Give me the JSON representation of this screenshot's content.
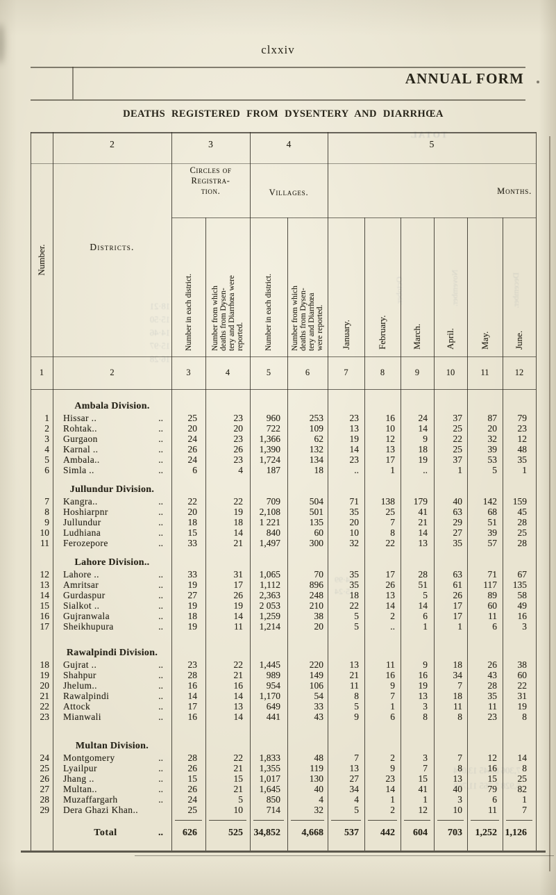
{
  "page": {
    "folio": "clxxiv",
    "form_title": "ANNUAL FORM",
    "table_title": "DEATHS REGISTERED FROM DYSENTERY AND DIARRHŒA",
    "ghosts": [
      "TOTAL",
      "October.",
      "November.",
      "December.",
      "18·21\n15·50\n14·46\n15·97\n16·28",
      "14·99\n15·24",
      "7,306  8,645  13,014\n5,928  5,765  11,760"
    ]
  },
  "table": {
    "group_numbers": [
      "2",
      "3",
      "4",
      "5"
    ],
    "groups": {
      "number_label": "Number.",
      "districts_label": "Districts.",
      "circles_label": "Circles of\nRegistra-\ntion.",
      "villages_label": "Villages.",
      "months_label": "Months."
    },
    "subheaders": [
      "Number in each district.",
      "Number from which\ndeaths from Dysen-\ntery and Diarrhœa were\nreported.",
      "Number in each district.",
      "Number from which\ndeaths from Dysen-\ntery and Diarrhœa\nwere reported."
    ],
    "months": [
      "January.",
      "February.",
      "March.",
      "April.",
      "May.",
      "June."
    ],
    "column_numbers": [
      "1",
      "2",
      "3",
      "4",
      "5",
      "6",
      "7",
      "8",
      "9",
      "10",
      "11",
      "12"
    ],
    "divisions": [
      {
        "name": "Ambala Division.",
        "rows": [
          {
            "no": "1",
            "name": "Hissar ..",
            "leader": "..",
            "c": [
              "25",
              "23",
              "960",
              "253"
            ],
            "m": [
              "23",
              "16",
              "24",
              "37",
              "87",
              "79"
            ]
          },
          {
            "no": "2",
            "name": "Rohtak..",
            "leader": "..",
            "c": [
              "20",
              "20",
              "722",
              "109"
            ],
            "m": [
              "13",
              "10",
              "14",
              "25",
              "20",
              "23"
            ]
          },
          {
            "no": "3",
            "name": "Gurgaon",
            "leader": "..",
            "c": [
              "24",
              "23",
              "1,366",
              "62"
            ],
            "m": [
              "19",
              "12",
              "9",
              "22",
              "32",
              "12"
            ]
          },
          {
            "no": "4",
            "name": "Karnal ..",
            "leader": "..",
            "c": [
              "26",
              "26",
              "1,390",
              "132"
            ],
            "m": [
              "14",
              "13",
              "18",
              "25",
              "39",
              "48"
            ]
          },
          {
            "no": "5",
            "name": "Ambala..",
            "leader": "..",
            "c": [
              "24",
              "23",
              "1,724",
              "134"
            ],
            "m": [
              "23",
              "17",
              "19",
              "37",
              "53",
              "35"
            ]
          },
          {
            "no": "6",
            "name": "Simla ..",
            "leader": "..",
            "c": [
              "6",
              "4",
              "187",
              "18"
            ],
            "m": [
              "..",
              "1",
              "..",
              "1",
              "5",
              "1"
            ]
          }
        ]
      },
      {
        "name": "Jullundur Division.",
        "rows": [
          {
            "no": "7",
            "name": "Kangra..",
            "leader": "..",
            "c": [
              "22",
              "22",
              "709",
              "504"
            ],
            "m": [
              "71",
              "138",
              "179",
              "40",
              "142",
              "159"
            ]
          },
          {
            "no": "8",
            "name": "Hoshiarpnr",
            "leader": "..",
            "c": [
              "20",
              "19",
              "2,108",
              "501"
            ],
            "m": [
              "35",
              "25",
              "41",
              "63",
              "68",
              "45"
            ]
          },
          {
            "no": "9",
            "name": "Jullundur",
            "leader": "..",
            "c": [
              "18",
              "18",
              "1 221",
              "135"
            ],
            "m": [
              "20",
              "7",
              "21",
              "29",
              "51",
              "28"
            ]
          },
          {
            "no": "10",
            "name": "Ludhiana",
            "leader": "..",
            "c": [
              "15",
              "14",
              "840",
              "60"
            ],
            "m": [
              "10",
              "8",
              "14",
              "27",
              "39",
              "25"
            ]
          },
          {
            "no": "11",
            "name": "Ferozepore",
            "leader": "..",
            "c": [
              "33",
              "21",
              "1,497",
              "300"
            ],
            "m": [
              "32",
              "22",
              "13",
              "35",
              "57",
              "28"
            ]
          }
        ]
      },
      {
        "name": "Lahore Division..",
        "rows": [
          {
            "no": "12",
            "name": "Lahore ..",
            "leader": "..",
            "c": [
              "33",
              "31",
              "1,065",
              "70"
            ],
            "m": [
              "35",
              "17",
              "28",
              "63",
              "71",
              "67"
            ]
          },
          {
            "no": "13",
            "name": "Amritsar",
            "leader": "..",
            "c": [
              "19",
              "17",
              "1,112",
              "896"
            ],
            "m": [
              "35",
              "26",
              "51",
              "61",
              "117",
              "135"
            ]
          },
          {
            "no": "14",
            "name": "Gurdaspur",
            "leader": "..",
            "c": [
              "27",
              "26",
              "2,363",
              "248"
            ],
            "m": [
              "18",
              "13",
              "5",
              "26",
              "89",
              "58"
            ]
          },
          {
            "no": "15",
            "name": "Sialkot ..",
            "leader": "..",
            "c": [
              "19",
              "19",
              "2 053",
              "210"
            ],
            "m": [
              "22",
              "14",
              "14",
              "17",
              "60",
              "49"
            ]
          },
          {
            "no": "16",
            "name": "Gujranwala",
            "leader": "..",
            "c": [
              "18",
              "14",
              "1,259",
              "38"
            ],
            "m": [
              "5",
              "2",
              "6",
              "17",
              "11",
              "16"
            ]
          },
          {
            "no": "17",
            "name": "Sheikhupura",
            "leader": "..",
            "c": [
              "19",
              "11",
              "1,214",
              "20"
            ],
            "m": [
              "5",
              "..",
              "1",
              "1",
              "6",
              "3"
            ]
          }
        ]
      },
      {
        "name": "Rawalpindi Division.",
        "rows": [
          {
            "no": "18",
            "name": "Gujrat ..",
            "leader": "..",
            "c": [
              "23",
              "22",
              "1,445",
              "220"
            ],
            "m": [
              "13",
              "11",
              "9",
              "18",
              "26",
              "38"
            ]
          },
          {
            "no": "19",
            "name": "Shahpur",
            "leader": "..",
            "c": [
              "28",
              "21",
              "989",
              "149"
            ],
            "m": [
              "21",
              "16",
              "16",
              "34",
              "43",
              "60"
            ]
          },
          {
            "no": "20",
            "name": "Jhelum..",
            "leader": "..",
            "c": [
              "16",
              "16",
              "954",
              "106"
            ],
            "m": [
              "11",
              "9",
              "19",
              "7",
              "28",
              "22"
            ]
          },
          {
            "no": "21",
            "name": "Rawalpindi",
            "leader": "..",
            "c": [
              "14",
              "14",
              "1,170",
              "54"
            ],
            "m": [
              "8",
              "7",
              "13",
              "18",
              "35",
              "31"
            ]
          },
          {
            "no": "22",
            "name": "Attock",
            "leader": "..",
            "c": [
              "17",
              "13",
              "649",
              "33"
            ],
            "m": [
              "5",
              "1",
              "3",
              "11",
              "11",
              "19"
            ]
          },
          {
            "no": "23",
            "name": "Mianwali",
            "leader": "..",
            "c": [
              "16",
              "14",
              "441",
              "43"
            ],
            "m": [
              "9",
              "6",
              "8",
              "8",
              "23",
              "8"
            ]
          }
        ]
      },
      {
        "name": "Multan Division.",
        "rows": [
          {
            "no": "24",
            "name": "Montgomery",
            "leader": "..",
            "c": [
              "28",
              "22",
              "1,833",
              "48"
            ],
            "m": [
              "7",
              "2",
              "3",
              "7",
              "12",
              "14"
            ]
          },
          {
            "no": "25",
            "name": "Lyailpur",
            "leader": "..",
            "c": [
              "26",
              "21",
              "1,355",
              "119"
            ],
            "m": [
              "13",
              "9",
              "7",
              "8",
              "16",
              "8"
            ]
          },
          {
            "no": "26",
            "name": "Jhang ..",
            "leader": "..",
            "c": [
              "15",
              "15",
              "1,017",
              "130"
            ],
            "m": [
              "27",
              "23",
              "15",
              "13",
              "15",
              "25"
            ]
          },
          {
            "no": "27",
            "name": "Multan..",
            "leader": "..",
            "c": [
              "26",
              "21",
              "1,645",
              "40"
            ],
            "m": [
              "34",
              "14",
              "41",
              "40",
              "79",
              "82"
            ]
          },
          {
            "no": "28",
            "name": "Muzaffargarh",
            "leader": "..",
            "c": [
              "24",
              "5",
              "850",
              "4"
            ],
            "m": [
              "4",
              "1",
              "1",
              "3",
              "6",
              "1"
            ]
          },
          {
            "no": "29",
            "name": "Dera Ghazi Khan..",
            "leader": "",
            "c": [
              "25",
              "10",
              "714",
              "32"
            ],
            "m": [
              "5",
              "2",
              "12",
              "10",
              "11",
              "7"
            ]
          }
        ]
      }
    ],
    "total": {
      "label": "Total",
      "leader": "..",
      "c": [
        "626",
        "525",
        "34,852",
        "4,668"
      ],
      "m": [
        "537",
        "442",
        "604",
        "703",
        "1,252",
        "1,126"
      ]
    }
  }
}
